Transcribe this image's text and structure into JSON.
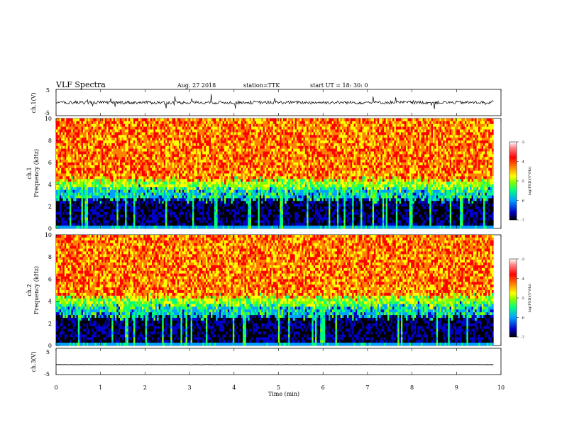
{
  "header": {
    "title": "VLF Spectra",
    "date": "Aug. 27 2018",
    "station": "station=TTK",
    "start_ut": "start UT =  18: 30: 0"
  },
  "chart_data": [
    {
      "type": "line",
      "panel": "ch1-waveform",
      "ylabel": "ch.1(V)",
      "yticks": [
        "5",
        "-5"
      ],
      "ylim": [
        -5,
        5
      ],
      "xlim": [
        0,
        10
      ],
      "baseline": 0,
      "color": "#000000"
    },
    {
      "type": "heatmap",
      "panel": "ch1-spectrogram",
      "ylabel_top": "ch.1",
      "ylabel": "Frequency  (kHz)",
      "yticks": [
        "0",
        "2",
        "4",
        "6",
        "8",
        "10"
      ],
      "ylim": [
        0,
        10
      ],
      "xlim": [
        0,
        9.83
      ],
      "colorbar": {
        "label": "log(PSD)(V²/Hz)",
        "ticks": [
          "-3",
          "-4",
          "-5",
          "-6",
          "-7"
        ],
        "range": [
          -7,
          -3
        ],
        "colors": [
          "#000000",
          "#0000c8",
          "#00a0ff",
          "#00ff80",
          "#80ff00",
          "#ffff00",
          "#ff8000",
          "#ff0000",
          "#ff8080",
          "#ffffff"
        ]
      }
    },
    {
      "type": "heatmap",
      "panel": "ch2-spectrogram",
      "ylabel_top": "ch.2",
      "ylabel": "Frequency  (kHz)",
      "yticks": [
        "0",
        "2",
        "4",
        "6",
        "8",
        "10"
      ],
      "ylim": [
        0,
        10
      ],
      "xlim": [
        0,
        9.83
      ],
      "colorbar": {
        "label": "log(PSD)(V²/Hz)",
        "ticks": [
          "-3",
          "-4",
          "-5",
          "-6",
          "-7"
        ],
        "range": [
          -7,
          -3
        ],
        "colors": [
          "#000000",
          "#0000c8",
          "#00a0ff",
          "#00ff80",
          "#80ff00",
          "#ffff00",
          "#ff8000",
          "#ff0000",
          "#ff8080",
          "#ffffff"
        ]
      }
    },
    {
      "type": "line",
      "panel": "ch3-waveform",
      "ylabel": "ch.3(V)",
      "yticks": [
        "5",
        "-5"
      ],
      "ylim": [
        -5,
        5
      ],
      "xlim": [
        0,
        10
      ],
      "baseline": -1.2,
      "color": "#000000"
    }
  ],
  "xaxis": {
    "label": "Time  (min)",
    "ticks": [
      "0",
      "1",
      "2",
      "3",
      "4",
      "5",
      "6",
      "7",
      "8",
      "9",
      "10"
    ],
    "range": [
      0,
      10
    ]
  }
}
